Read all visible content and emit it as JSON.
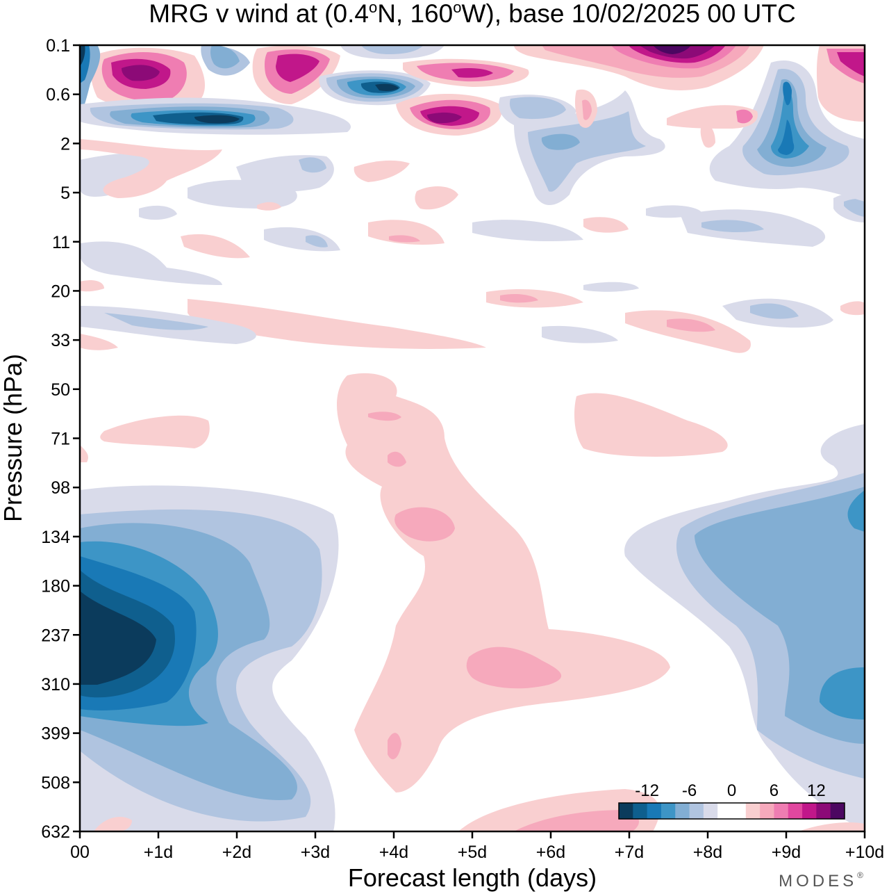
{
  "chart_data": {
    "type": "heatmap",
    "title": {
      "prefix": "MRG v wind at (0.4",
      "deg1": "o",
      "mid": "N, 160",
      "deg2": "o",
      "suffix": "W),  base 10/02/2025  00 UTC"
    },
    "xlabel": "Forecast length (days)",
    "ylabel": "Pressure (hPa)",
    "x_ticks": [
      "00",
      "+1d",
      "+2d",
      "+3d",
      "+4d",
      "+5d",
      "+6d",
      "+7d",
      "+8d",
      "+9d",
      "+10d"
    ],
    "xlim": [
      0,
      10
    ],
    "y_ticks": [
      "0.1",
      "0.6",
      "2",
      "5",
      "11",
      "20",
      "33",
      "50",
      "71",
      "98",
      "134",
      "180",
      "237",
      "310",
      "399",
      "508",
      "632"
    ],
    "y_scale": "log (top 0.1 hPa, bottom 632 hPa)",
    "colorbar": {
      "tick_labels": [
        "-12",
        "-6",
        "0",
        "6",
        "12"
      ],
      "colors": [
        "#0b3b5c",
        "#0f5f8e",
        "#1979b6",
        "#3d95c6",
        "#82aed3",
        "#b0c4e0",
        "#d9dbea",
        "#ffffff",
        "#ffffff",
        "#f9cfd0",
        "#f6a9bc",
        "#ef7db2",
        "#e1479f",
        "#c1178a",
        "#8c0a77",
        "#4c0761"
      ],
      "placement": "bottom-right"
    },
    "regions": [
      {
        "sign": "negative",
        "level": -15,
        "x": [
          0.0,
          1.0
        ],
        "y": [
          180,
          310
        ]
      },
      {
        "sign": "negative",
        "level": -9,
        "x": [
          0.0,
          2.0
        ],
        "y": [
          134,
          399
        ]
      },
      {
        "sign": "negative",
        "level": -6,
        "x": [
          0.0,
          3.0
        ],
        "y": [
          98,
          508
        ]
      },
      {
        "sign": "negative",
        "level": -3,
        "x": [
          8.0,
          10.0
        ],
        "y": [
          98,
          508
        ]
      },
      {
        "sign": "negative",
        "level": -6,
        "x": [
          8.5,
          10.0
        ],
        "y": [
          134,
          399
        ]
      },
      {
        "sign": "positive",
        "level": 3,
        "x": [
          3.5,
          7.5
        ],
        "y": [
          50,
          508
        ]
      },
      {
        "sign": "positive",
        "level": 6,
        "x": [
          5.0,
          6.0
        ],
        "y": [
          237,
          310
        ]
      },
      {
        "sign": "positive",
        "level": 12,
        "x": [
          0.3,
          1.2
        ],
        "y": [
          0.2,
          0.7
        ]
      },
      {
        "sign": "negative",
        "level": -12,
        "x": [
          0.7,
          2.2
        ],
        "y": [
          0.9,
          1.4
        ]
      },
      {
        "sign": "negative",
        "level": -12,
        "x": [
          3.3,
          4.3
        ],
        "y": [
          0.4,
          0.8
        ]
      },
      {
        "sign": "positive",
        "level": 12,
        "x": [
          4.1,
          5.0
        ],
        "y": [
          0.9,
          1.6
        ]
      },
      {
        "sign": "positive",
        "level": 15,
        "x": [
          7.0,
          8.2
        ],
        "y": [
          0.1,
          0.25
        ]
      },
      {
        "sign": "negative",
        "level": -9,
        "x": [
          8.6,
          9.3
        ],
        "y": [
          0.3,
          3.5
        ]
      }
    ],
    "brand": "MODES",
    "brand_mark": "®"
  }
}
